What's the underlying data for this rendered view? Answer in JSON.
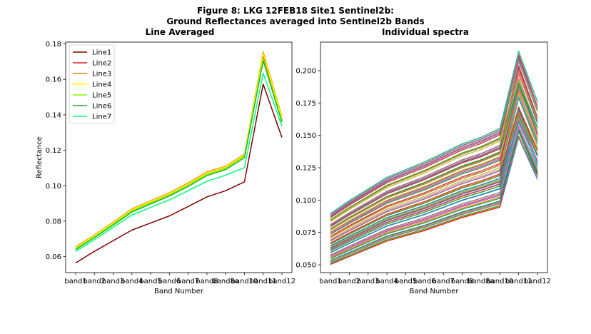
{
  "figure": {
    "suptitle_line1": "Figure 8: LKG 12FEB18 Site1 Sentinel2b:",
    "suptitle_line2": "Ground Reflectances averaged into Sentinel2b Bands"
  },
  "chart_data": [
    {
      "type": "line",
      "title": "Line Averaged",
      "xlabel": "Band Number",
      "ylabel": "Reflectance",
      "categories": [
        "band1",
        "band2",
        "band3",
        "band4",
        "band5",
        "band6",
        "band7",
        "band8",
        "band8a",
        "band10",
        "band11",
        "band12"
      ],
      "ylim": [
        0.051,
        0.181
      ],
      "yticks": [
        0.06,
        0.08,
        0.1,
        0.12,
        0.14,
        0.16,
        0.18
      ],
      "ytick_labels": [
        "0.06",
        "0.08",
        "0.10",
        "0.12",
        "0.14",
        "0.16",
        "0.18"
      ],
      "legend_position": "upper-left",
      "series": [
        {
          "name": "Line1",
          "color": "#800000",
          "values": [
            0.0565,
            0.063,
            0.069,
            0.075,
            0.079,
            0.083,
            0.0883,
            0.0937,
            0.0972,
            0.1022,
            0.1573,
            0.1272
          ]
        },
        {
          "name": "Line2",
          "color": "#e31a1c",
          "values": [
            0.0652,
            0.0718,
            0.079,
            0.0865,
            0.091,
            0.0955,
            0.101,
            0.1072,
            0.1105,
            0.1172,
            0.173,
            0.137
          ]
        },
        {
          "name": "Line3",
          "color": "#ff7f0e",
          "values": [
            0.0655,
            0.0722,
            0.0795,
            0.087,
            0.0915,
            0.096,
            0.1016,
            0.1078,
            0.111,
            0.1178,
            0.1755,
            0.139
          ]
        },
        {
          "name": "Line4",
          "color": "#ffff00",
          "values": [
            0.065,
            0.0718,
            0.0791,
            0.0866,
            0.0911,
            0.0956,
            0.1011,
            0.1073,
            0.1106,
            0.1173,
            0.1745,
            0.1382
          ]
        },
        {
          "name": "Line5",
          "color": "#7fff00",
          "values": [
            0.0645,
            0.0712,
            0.0784,
            0.0858,
            0.0903,
            0.0948,
            0.1003,
            0.1064,
            0.1098,
            0.1165,
            0.1715,
            0.1365
          ]
        },
        {
          "name": "Line6",
          "color": "#22b422",
          "values": [
            0.064,
            0.0707,
            0.0778,
            0.0852,
            0.0897,
            0.0942,
            0.0996,
            0.1057,
            0.1091,
            0.1158,
            0.1705,
            0.1358
          ]
        },
        {
          "name": "Line7",
          "color": "#00ff7f",
          "values": [
            0.063,
            0.0695,
            0.0765,
            0.0835,
            0.0878,
            0.092,
            0.0972,
            0.1025,
            0.106,
            0.1102,
            0.1635,
            0.1335
          ]
        }
      ]
    },
    {
      "type": "line",
      "title": "Individual spectra",
      "xlabel": "",
      "ylabel": "",
      "xtick_labels_note": "",
      "categories": [
        "band1",
        "band2",
        "band3",
        "band4",
        "band5",
        "band6",
        "band7",
        "band8",
        "band8a",
        "band10",
        "band11",
        "band12"
      ],
      "ylim": [
        0.044,
        0.222
      ],
      "yticks": [
        0.05,
        0.075,
        0.1,
        0.125,
        0.15,
        0.175,
        0.2
      ],
      "ytick_labels": [
        "0.050",
        "0.075",
        "0.100",
        "0.125",
        "0.150",
        "0.175",
        "0.200"
      ],
      "axis_xlabel": "Band Number",
      "spectra_upper_envelope": [
        0.09,
        0.1,
        0.109,
        0.118,
        0.124,
        0.13,
        0.137,
        0.144,
        0.149,
        0.156,
        0.215,
        0.176
      ],
      "spectra_lower_envelope": [
        0.05,
        0.056,
        0.062,
        0.068,
        0.072,
        0.076,
        0.081,
        0.086,
        0.09,
        0.094,
        0.148,
        0.116
      ],
      "spectra_count": 70,
      "colors": [
        "#1f77b4",
        "#ff7f0e",
        "#2ca02c",
        "#d62728",
        "#9467bd",
        "#8c564b",
        "#e377c2",
        "#7f7f7f",
        "#bcbd22",
        "#17becf"
      ]
    }
  ]
}
